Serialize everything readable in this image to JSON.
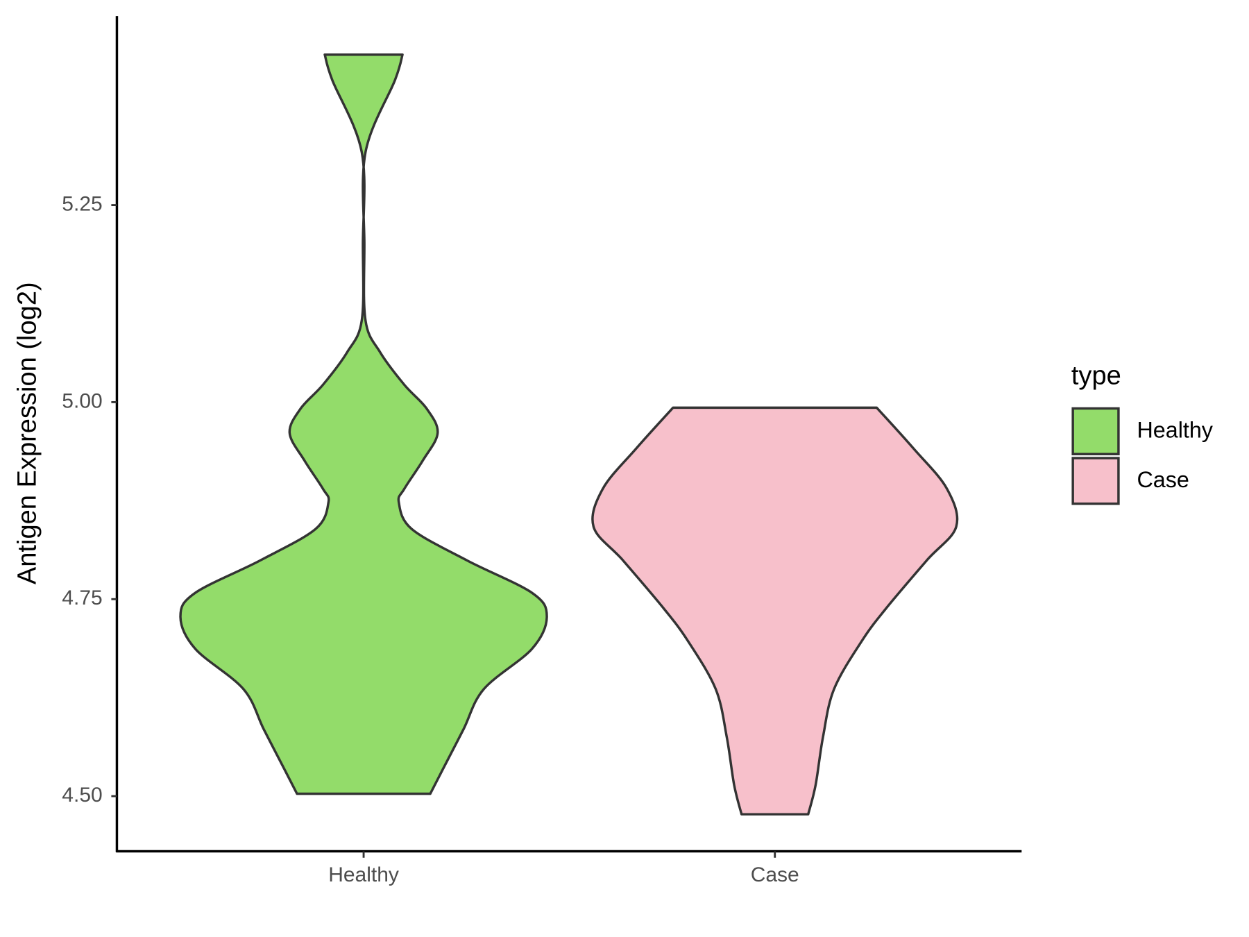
{
  "chart_data": {
    "type": "violin",
    "ylabel": "Antigen Expression (log2)",
    "categories": [
      "Healthy",
      "Case"
    ],
    "legend_title": "type",
    "legend_position": "right",
    "ylim": [
      4.43,
      5.49
    ],
    "yticks": [
      {
        "value": 4.5,
        "label": "4.50"
      },
      4.75,
      {
        "value": 5.0,
        "label": "5.00"
      },
      5.25
    ],
    "series": [
      {
        "name": "Healthy",
        "color": "#93dc6a",
        "y": [
          5.441,
          5.409,
          5.317,
          5.2,
          5.104,
          5.063,
          5.022,
          4.992,
          4.961,
          4.926,
          4.89,
          4.873,
          4.839,
          4.799,
          4.758,
          4.728,
          4.687,
          4.636,
          4.585,
          4.535,
          4.503
        ],
        "width": [
          0.21,
          0.17,
          0.01,
          0.004,
          0.01,
          0.09,
          0.22,
          0.34,
          0.4,
          0.32,
          0.22,
          0.19,
          0.26,
          0.56,
          0.91,
          0.99,
          0.91,
          0.65,
          0.54,
          0.43,
          0.36
        ]
      },
      {
        "name": "Case",
        "color": "#f7c0cb",
        "y": [
          4.993,
          4.941,
          4.89,
          4.842,
          4.799,
          4.738,
          4.697,
          4.636,
          4.575,
          4.514,
          4.477
        ],
        "width": [
          0.55,
          0.75,
          0.93,
          0.98,
          0.82,
          0.6,
          0.47,
          0.32,
          0.26,
          0.22,
          0.18
        ]
      }
    ]
  }
}
